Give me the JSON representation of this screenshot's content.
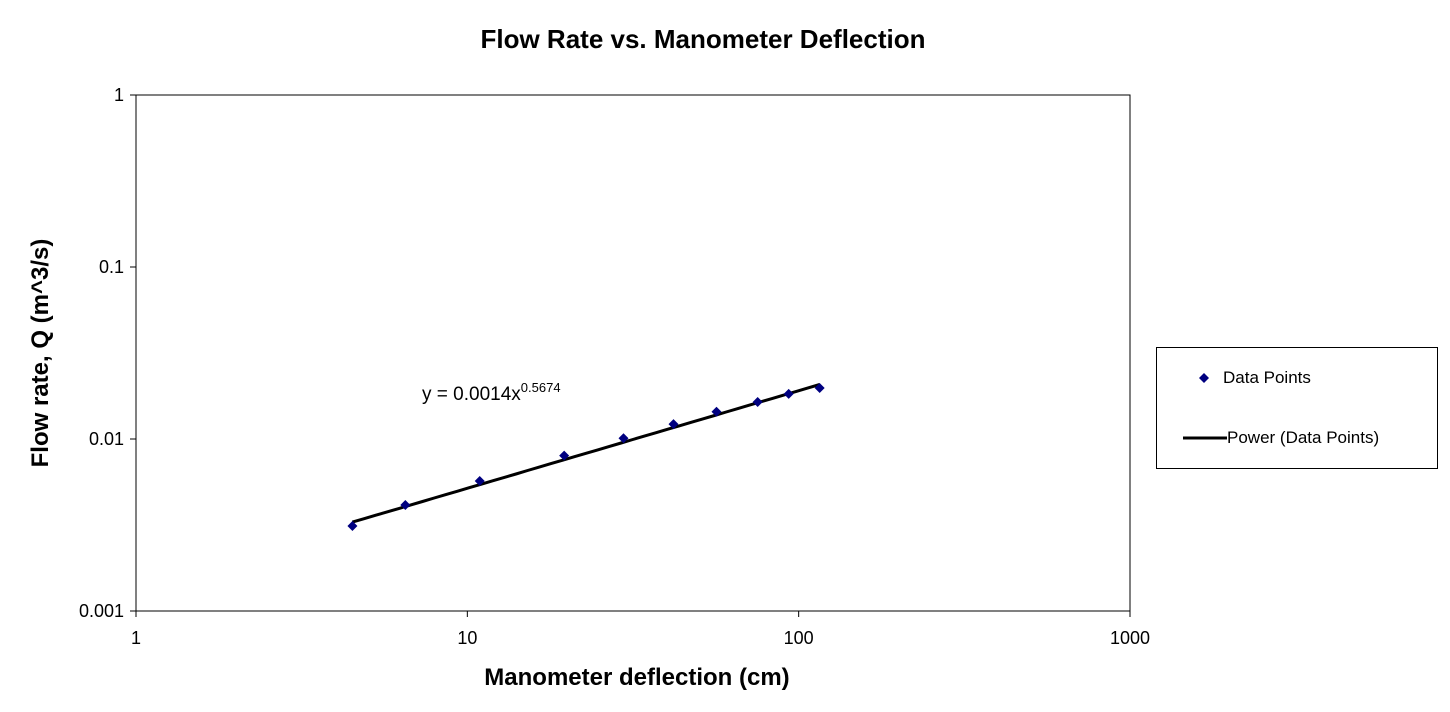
{
  "chart_data": {
    "type": "scatter",
    "title": "Flow Rate vs. Manometer Deflection",
    "xlabel": "Manometer deflection (cm)",
    "ylabel": "Flow rate, Q (m^3/s)",
    "xscale": "log",
    "yscale": "log",
    "xlim": [
      1,
      1000
    ],
    "ylim": [
      0.001,
      1
    ],
    "x_ticks": [
      "1",
      "10",
      "100",
      "1000"
    ],
    "y_ticks": [
      "0.001",
      "0.01",
      "0.1",
      "1"
    ],
    "grid": false,
    "legend_position": "right",
    "series": [
      {
        "name": "Data Points",
        "marker": "diamond",
        "color": "#000080",
        "x": [
          4.5,
          6.5,
          10.9,
          19.6,
          29.6,
          41.9,
          56.5,
          75.2,
          93.3,
          115.7
        ],
        "y": [
          0.00312,
          0.00413,
          0.0057,
          0.008,
          0.0101,
          0.0122,
          0.0144,
          0.0164,
          0.0183,
          0.0198
        ]
      }
    ],
    "trendline": {
      "name": "Power (Data Points)",
      "type": "power",
      "color": "#000000",
      "coefficient": 0.0014,
      "exponent": 0.5674,
      "equation_base": "y = 0.0014x",
      "equation_exponent": "0.5674"
    }
  }
}
